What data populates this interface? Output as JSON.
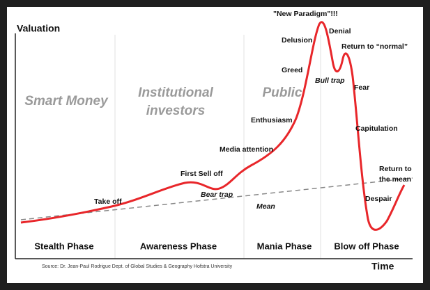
{
  "axes": {
    "y_label": "Valuation",
    "x_label": "Time"
  },
  "groups": [
    {
      "lines": [
        "Smart Money"
      ]
    },
    {
      "lines": [
        "Institutional",
        "investors"
      ]
    },
    {
      "lines": [
        "Public"
      ]
    }
  ],
  "phases": [
    "Stealth Phase",
    "Awareness Phase",
    "Mania Phase",
    "Blow off Phase"
  ],
  "annotations": [
    {
      "lines": [
        "\"New Paradigm\"!!!"
      ]
    },
    {
      "lines": [
        "Denial"
      ]
    },
    {
      "lines": [
        "Delusion"
      ]
    },
    {
      "lines": [
        "Return to “normal”"
      ]
    },
    {
      "lines": [
        "Greed"
      ]
    },
    {
      "lines": [
        "Bull trap"
      ]
    },
    {
      "lines": [
        "Fear"
      ]
    },
    {
      "lines": [
        "Enthusiasm"
      ]
    },
    {
      "lines": [
        "Capitulation"
      ]
    },
    {
      "lines": [
        "Media attention"
      ]
    },
    {
      "lines": [
        "First Sell off"
      ]
    },
    {
      "lines": [
        "Return to",
        "the mean"
      ]
    },
    {
      "lines": [
        "Bear trap"
      ]
    },
    {
      "lines": [
        "Take off"
      ]
    },
    {
      "lines": [
        "Despair"
      ]
    },
    {
      "lines": [
        "Mean"
      ]
    }
  ],
  "source": "Source: Dr. Jean-Paul Rodrigue Dept. of Global Studies & Geography Hofstra University"
}
